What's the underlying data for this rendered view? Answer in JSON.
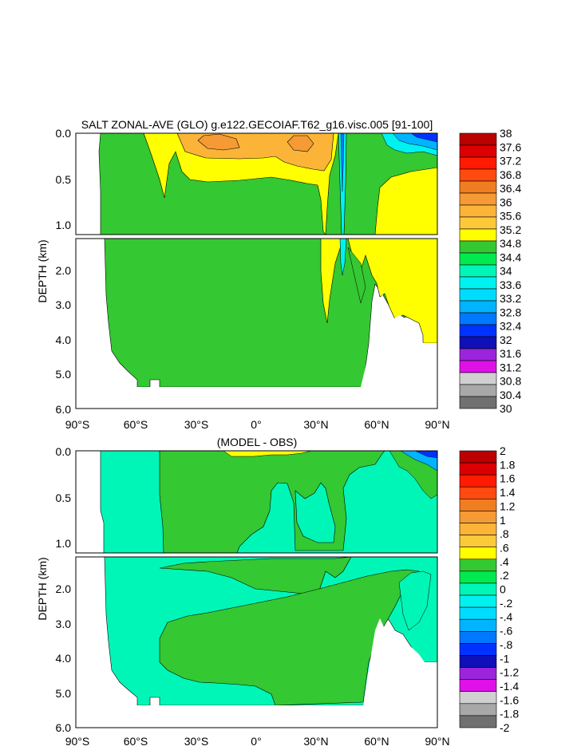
{
  "chart_data": [
    {
      "type": "heatmap",
      "title": "SALT ZONAL-AVE (GLO) g.e122.GECOIAF.T62_g16.visc.005 [91-100]",
      "xlabel": "",
      "ylabel": "DEPTH (km)",
      "x_ticks": [
        "90°S",
        "60°S",
        "30°S",
        "0°",
        "30°N",
        "60°N",
        "90°N"
      ],
      "y_ticks_upper": [
        "0.0",
        "0.5",
        "1.0"
      ],
      "y_ticks_lower": [
        "2.0",
        "3.0",
        "4.0",
        "5.0",
        "6.0"
      ],
      "xlim": [
        -90,
        90
      ],
      "ylim_upper_km": [
        0,
        1.15
      ],
      "ylim_lower_km": [
        1.15,
        6.0
      ],
      "colorbar_levels": [
        "38",
        "37.6",
        "37.2",
        "36.8",
        "36.4",
        "36",
        "35.6",
        "35.2",
        "34.8",
        "34.4",
        "34",
        "33.6",
        "33.2",
        "32.8",
        "32.4",
        "32",
        "31.6",
        "31.2",
        "30.8",
        "30.4",
        "30"
      ],
      "colorbar_colors": [
        "#bb0000",
        "#dd0000",
        "#ff1a00",
        "#ff4a10",
        "#f07d20",
        "#f59a35",
        "#fbb438",
        "#fcc93a",
        "#ffff00",
        "#34c832",
        "#00ea50",
        "#00f6b6",
        "#00f2f0",
        "#00dcff",
        "#00b4ff",
        "#0078ff",
        "#0032ff",
        "#1010b8",
        "#9b24dc",
        "#e010e8",
        "#d0d0d0",
        "#a8a8a8",
        "#707070"
      ]
    },
    {
      "type": "heatmap",
      "title": "(MODEL - OBS)",
      "xlabel": "",
      "ylabel": "DEPTH (km)",
      "x_ticks": [
        "90°S",
        "60°S",
        "30°S",
        "0°",
        "30°N",
        "60°N",
        "90°N"
      ],
      "y_ticks_upper": [
        "0.0",
        "0.5",
        "1.0"
      ],
      "y_ticks_lower": [
        "2.0",
        "3.0",
        "4.0",
        "5.0",
        "6.0"
      ],
      "xlim": [
        -90,
        90
      ],
      "ylim_upper_km": [
        0,
        1.15
      ],
      "ylim_lower_km": [
        1.15,
        6.0
      ],
      "colorbar_levels": [
        "2",
        "1.8",
        "1.6",
        "1.4",
        "1.2",
        "1",
        ".8",
        ".6",
        ".4",
        ".2",
        "0",
        "-.2",
        "-.4",
        "-.6",
        "-.8",
        "-1",
        "-1.2",
        "-1.4",
        "-1.6",
        "-1.8",
        "-2"
      ],
      "colorbar_colors": [
        "#bb0000",
        "#dd0000",
        "#ff1a00",
        "#ff4a10",
        "#f07d20",
        "#f59a35",
        "#fbb438",
        "#fcc93a",
        "#ffff00",
        "#34c832",
        "#00ea50",
        "#00f6b6",
        "#00f2f0",
        "#00dcff",
        "#00b4ff",
        "#0078ff",
        "#0032ff",
        "#1010b8",
        "#9b24dc",
        "#e010e8",
        "#d0d0d0",
        "#a8a8a8",
        "#707070"
      ]
    }
  ]
}
